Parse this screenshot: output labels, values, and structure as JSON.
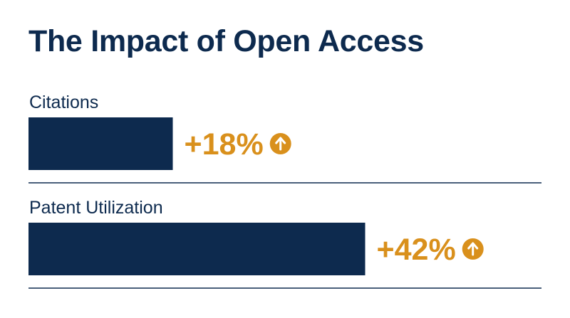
{
  "title": "The Impact of Open Access",
  "colors": {
    "bar": "#0d2a4e",
    "accent": "#d9901c",
    "divider": "#0d2a4e"
  },
  "chart_data": {
    "type": "bar",
    "orientation": "horizontal",
    "title": "The Impact of Open Access",
    "categories": [
      "Citations",
      "Patent Utilization"
    ],
    "values": [
      18,
      42
    ],
    "value_labels": [
      "+18%",
      "+42%"
    ],
    "unit": "%",
    "icon": "arrow-up-circle-icon",
    "xlim": [
      0,
      60
    ],
    "grid": false,
    "legend": "none"
  }
}
